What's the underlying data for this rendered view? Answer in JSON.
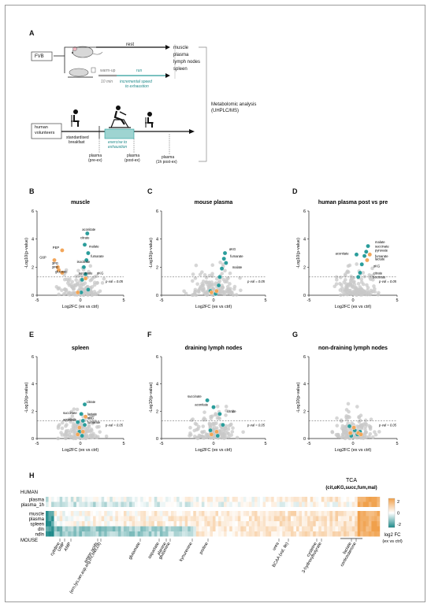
{
  "panel_labels": {
    "a": "A",
    "b": "B",
    "c": "C",
    "d": "D",
    "e": "E",
    "f": "F",
    "g": "G",
    "h": "H"
  },
  "scheme": {
    "mouse_label": "FVB",
    "rest": "rest",
    "warmup": "warm-up",
    "warmup_time": "10 min",
    "run": "run",
    "run_note_1": "incremental speed",
    "run_note_2": "to exhaustion",
    "tissues": [
      "muscle",
      "plasma",
      "lymph nodes",
      "spleen"
    ],
    "human_label_1": "human",
    "human_label_2": "volunteers",
    "breakfast_1": "standardised",
    "breakfast_2": "breakfast",
    "exercise_1": "exercise to",
    "exercise_2": "exhaustion",
    "plasma_pre_1": "plasma",
    "plasma_pre_2": "(pre-ex)",
    "plasma_post_1": "plasma",
    "plasma_post_2": "(post-ex)",
    "plasma_1h_1": "plasma",
    "plasma_1h_2": "(1h post-ex)",
    "analysis_1": "Metabolomic analysis",
    "analysis_2": "(UHPLC/MS)"
  },
  "chart_data": [
    {
      "type": "scatter",
      "panel": "B",
      "title": "muscle",
      "xlabel": "Log2FC (ex vs ctrl)",
      "ylabel": "-Log10(p-value)",
      "xlim": [
        -5,
        5
      ],
      "ylim": [
        0,
        6
      ],
      "xticks": [
        -5,
        0,
        5
      ],
      "yticks": [
        0,
        2,
        4,
        6
      ],
      "threshold": 1.3,
      "threshold_label": "p-val = 0.05",
      "labels": [
        {
          "text": "aconitate",
          "x": 0.2,
          "y": 4.6
        },
        {
          "text": "citrate",
          "x": 0.0,
          "y": 4.0
        },
        {
          "text": "malate",
          "x": 1.0,
          "y": 3.4
        },
        {
          "text": "fumarate",
          "x": 1.2,
          "y": 2.7
        },
        {
          "text": "PEP",
          "x": -3.2,
          "y": 3.3
        },
        {
          "text": "G6P",
          "x": -4.7,
          "y": 2.6
        },
        {
          "text": "3PG",
          "x": -3.3,
          "y": 2.2
        },
        {
          "text": "2PG",
          "x": -3.3,
          "y": 1.9
        },
        {
          "text": "glucose",
          "x": -2.9,
          "y": 1.6
        },
        {
          "text": "isocitrate",
          "x": -0.4,
          "y": 2.3
        },
        {
          "text": "succinate",
          "x": -0.2,
          "y": 1.5
        },
        {
          "text": "αKG",
          "x": 1.9,
          "y": 1.5
        }
      ],
      "series": [
        {
          "color": "#2a9d9b",
          "points": [
            [
              0.8,
              4.4
            ],
            [
              0.5,
              3.6
            ],
            [
              0.9,
              3.0
            ],
            [
              0.7,
              2.5
            ],
            [
              0.4,
              2.0
            ],
            [
              0.6,
              1.5
            ],
            [
              0.2,
              1.1
            ],
            [
              0.9,
              0.4
            ],
            [
              0.1,
              0.2
            ]
          ]
        },
        {
          "color": "#f2a65a",
          "points": [
            [
              -2.1,
              3.2
            ],
            [
              -3.0,
              2.5
            ],
            [
              -2.6,
              2.0
            ],
            [
              -2.5,
              1.8
            ],
            [
              -2.1,
              1.6
            ],
            [
              0.6,
              1.2
            ],
            [
              -0.3,
              0.2
            ]
          ]
        }
      ]
    },
    {
      "type": "scatter",
      "panel": "C",
      "title": "mouse plasma",
      "xlabel": "Log2FC (ex vs ctrl)",
      "ylabel": "-Log10(p-value)",
      "xlim": [
        -5,
        5
      ],
      "ylim": [
        0,
        6
      ],
      "xticks": [
        -5,
        0,
        5
      ],
      "yticks": [
        0,
        2,
        4,
        6
      ],
      "threshold": 1.3,
      "threshold_label": "p-val = 0.05",
      "labels": [
        {
          "text": "αKG",
          "x": 1.5,
          "y": 3.2
        },
        {
          "text": "fumarate",
          "x": 1.6,
          "y": 2.7
        },
        {
          "text": "malate",
          "x": 1.8,
          "y": 1.9
        }
      ],
      "series": [
        {
          "color": "#2a9d9b",
          "points": [
            [
              1.1,
              3.0
            ],
            [
              1.0,
              2.6
            ],
            [
              1.2,
              2.3
            ],
            [
              0.8,
              1.9
            ],
            [
              0.6,
              1.3
            ],
            [
              0.5,
              0.7
            ],
            [
              -0.3,
              0.3
            ],
            [
              0.2,
              0.1
            ]
          ]
        },
        {
          "color": "#f2a65a",
          "points": [
            [
              -0.2,
              0.2
            ],
            [
              0.3,
              0.3
            ]
          ]
        }
      ]
    },
    {
      "type": "scatter",
      "panel": "D",
      "title": "human plasma post vs pre",
      "xlabel": "Log2FC (ex vs ctrl)",
      "ylabel": "-Log10(p-value)",
      "xlim": [
        -5,
        5
      ],
      "ylim": [
        0,
        6
      ],
      "xticks": [
        -5,
        0,
        5
      ],
      "yticks": [
        0,
        2,
        4,
        6
      ],
      "threshold": 1.3,
      "threshold_label": "p-val = 0.05",
      "labels": [
        {
          "text": "malate",
          "x": 2.5,
          "y": 3.7
        },
        {
          "text": "succinate",
          "x": 2.5,
          "y": 3.4
        },
        {
          "text": "pyruvate",
          "x": 2.5,
          "y": 3.1
        },
        {
          "text": "fumarate",
          "x": 2.5,
          "y": 2.7
        },
        {
          "text": "lactate",
          "x": 2.5,
          "y": 2.5
        },
        {
          "text": "αKG",
          "x": 2.3,
          "y": 2.0
        },
        {
          "text": "citrate",
          "x": 2.3,
          "y": 1.5
        },
        {
          "text": "aconitate",
          "x": -2.0,
          "y": 2.9
        },
        {
          "text": "isocitrate",
          "x": 2.2,
          "y": 1.2
        }
      ],
      "series": [
        {
          "color": "#2a9d9b",
          "points": [
            [
              1.7,
              3.5
            ],
            [
              1.5,
              3.1
            ],
            [
              1.3,
              2.8
            ],
            [
              1.0,
              2.2
            ],
            [
              0.8,
              1.6
            ],
            [
              0.4,
              2.9
            ],
            [
              0.6,
              1.3
            ]
          ]
        },
        {
          "color": "#f2a65a",
          "points": [
            [
              1.9,
              2.9
            ],
            [
              1.6,
              2.5
            ]
          ]
        }
      ]
    },
    {
      "type": "scatter",
      "panel": "E",
      "title": "spleen",
      "xlabel": "Log2FC (ex vs ctrl)",
      "ylabel": "-Log10(p-value)",
      "xlim": [
        -5,
        5
      ],
      "ylim": [
        0,
        6
      ],
      "xticks": [
        -5,
        0,
        5
      ],
      "yticks": [
        0,
        2,
        4,
        6
      ],
      "threshold": 1.3,
      "threshold_label": "p-val = 0.05",
      "labels": [
        {
          "text": "citrate",
          "x": 0.7,
          "y": 2.6
        },
        {
          "text": "succinate",
          "x": -2.0,
          "y": 1.8
        },
        {
          "text": "lactate",
          "x": 0.8,
          "y": 1.7
        },
        {
          "text": "αKG",
          "x": 0.8,
          "y": 1.4
        },
        {
          "text": "aconitate",
          "x": -2.0,
          "y": 1.3
        },
        {
          "text": "fumarate",
          "x": 0.8,
          "y": 1.1
        }
      ],
      "series": [
        {
          "color": "#2a9d9b",
          "points": [
            [
              0.5,
              2.5
            ],
            [
              0.1,
              1.8
            ],
            [
              0.3,
              1.3
            ],
            [
              -0.3,
              1.2
            ],
            [
              0.5,
              1.0
            ],
            [
              -0.1,
              0.5
            ],
            [
              0.2,
              0.2
            ]
          ]
        },
        {
          "color": "#f2a65a",
          "points": [
            [
              0.6,
              1.6
            ],
            [
              -0.1,
              0.8
            ],
            [
              0.3,
              0.5
            ],
            [
              -0.3,
              0.3
            ]
          ]
        }
      ]
    },
    {
      "type": "scatter",
      "panel": "F",
      "title": "draining lymph nodes",
      "xlabel": "Log2FC (ex vs ctrl)",
      "ylabel": "-Log10(p-value)",
      "xlim": [
        -5,
        5
      ],
      "ylim": [
        0,
        6
      ],
      "xticks": [
        -5,
        0,
        5
      ],
      "yticks": [
        0,
        2,
        4,
        6
      ],
      "threshold": 1.3,
      "threshold_label": "p-val = 0.05",
      "labels": [
        {
          "text": "succinate",
          "x": -2.5,
          "y": 3.0
        },
        {
          "text": "aconitate",
          "x": -1.8,
          "y": 2.4
        },
        {
          "text": "citrate",
          "x": 1.3,
          "y": 1.9
        }
      ],
      "series": [
        {
          "color": "#2a9d9b",
          "points": [
            [
              -0.6,
              2.8
            ],
            [
              0.0,
              2.3
            ],
            [
              0.6,
              1.8
            ],
            [
              0.9,
              1.0
            ],
            [
              -0.3,
              0.6
            ],
            [
              0.4,
              0.2
            ]
          ]
        },
        {
          "color": "#f2a65a",
          "points": [
            [
              -0.2,
              0.3
            ],
            [
              0.3,
              0.5
            ]
          ]
        }
      ]
    },
    {
      "type": "scatter",
      "panel": "G",
      "title": "non-draining lymph nodes",
      "xlabel": "Log2FC (ex vs ctrl)",
      "ylabel": "-Log10(p-value)",
      "xlim": [
        -5,
        5
      ],
      "ylim": [
        0,
        6
      ],
      "xticks": [
        -5,
        0,
        5
      ],
      "yticks": [
        0,
        2,
        4,
        6
      ],
      "threshold": 1.3,
      "threshold_label": "p-val = 0.05",
      "labels": [],
      "series": [
        {
          "color": "#2a9d9b",
          "points": [
            [
              0.2,
              0.6
            ],
            [
              -0.4,
              0.9
            ],
            [
              0.5,
              0.3
            ],
            [
              -0.2,
              0.2
            ],
            [
              0.8,
              0.5
            ]
          ]
        },
        {
          "color": "#f2a65a",
          "points": [
            [
              0.6,
              0.4
            ],
            [
              0.9,
              0.3
            ],
            [
              -0.3,
              0.4
            ],
            [
              0.1,
              0.8
            ]
          ]
        }
      ]
    },
    {
      "type": "heatmap",
      "panel": "H",
      "human_label": "HUMAN",
      "mouse_label": "MOUSE",
      "human_rows": [
        "plasma",
        "plasma_1h"
      ],
      "mouse_rows": [
        "muscle",
        "plasma",
        "spleen",
        "dln",
        "ndln"
      ],
      "tca_label_1": "TCA",
      "tca_label_2": "(cit,αKG,succ,fum,mal)",
      "colorbar_ticks": [
        2,
        0,
        -2
      ],
      "colorbar_label_1": "log2 FC",
      "colorbar_label_2": "(ex vs ctrl)",
      "colors": {
        "positive": "#f0a04b",
        "negative": "#1f8a8a",
        "neutral": "#ffffff"
      },
      "metabolite_labels": [
        "cytidine",
        "UMP",
        "AMP",
        "amino acids",
        "(orn,lys,ser,asp,arg,thr,met,cit)",
        "glutamate",
        "aspartate",
        "alanine",
        "glutamine",
        "kynurenine",
        "proline",
        "urea",
        "BCAA (val, ile)",
        "cysteine",
        "3-hydroxybutyrate",
        "lactate",
        "corticosterone"
      ]
    }
  ]
}
